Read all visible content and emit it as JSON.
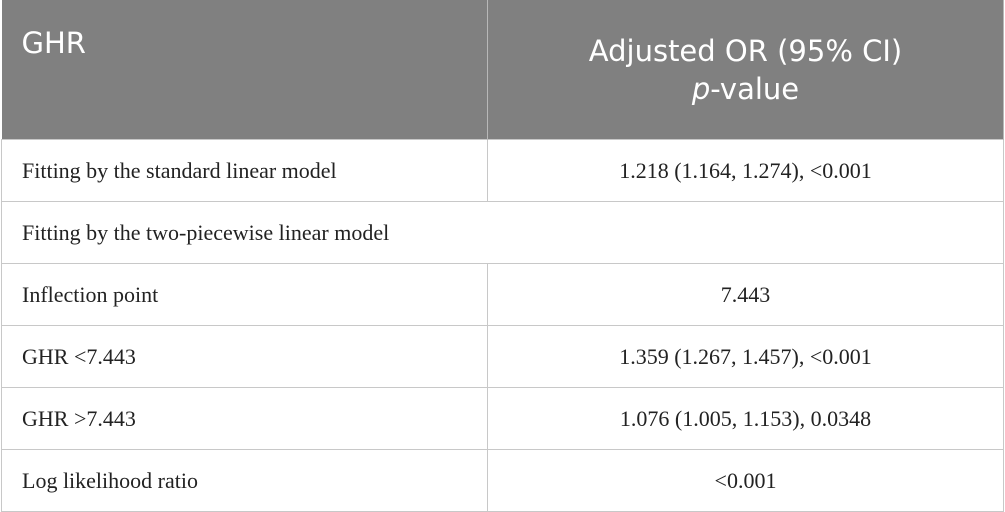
{
  "table": {
    "header": [
      "GHR",
      "Adjusted OR (95% CI)"
    ],
    "header_line2": {
      "italic": "p",
      "text": "-value"
    },
    "rows": [
      [
        "Fitting by the standard linear model",
        "1.218 (1.164, 1.274), <0.001"
      ],
      [
        "Fitting by the two-piecewise linear model"
      ],
      [
        "Inflection point",
        "7.443"
      ],
      [
        "GHR <7.443",
        "1.359 (1.267, 1.457), <0.001"
      ],
      [
        "GHR >7.443",
        "1.076 (1.005, 1.153), 0.0348"
      ],
      [
        "Log likelihood ratio",
        "<0.001"
      ]
    ]
  }
}
